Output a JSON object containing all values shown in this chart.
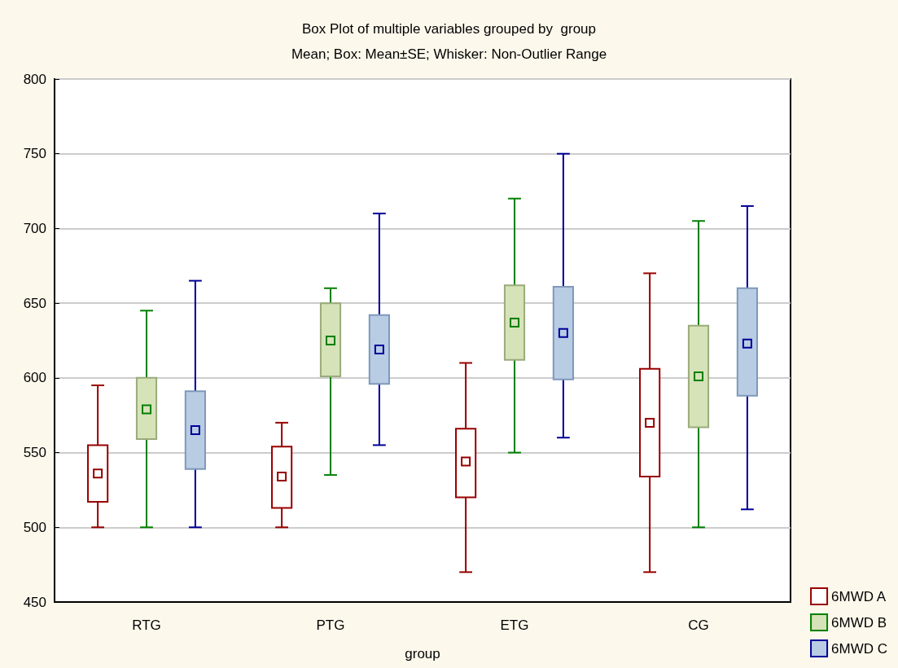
{
  "chart_data": {
    "type": "box",
    "title": "Box Plot of multiple variables grouped by  group",
    "subtitle": "Mean; Box: Mean±SE; Whisker: Non-Outlier Range",
    "xlabel": "group",
    "categories": [
      "RTG",
      "PTG",
      "ETG",
      "CG"
    ],
    "ylim": [
      450,
      800
    ],
    "yticks": [
      450,
      500,
      550,
      600,
      650,
      700,
      750,
      800
    ],
    "grid": "y",
    "legend": "bottom right",
    "marker": "square",
    "series": [
      {
        "name": "6MWD A",
        "color": "#990000",
        "boxes": [
          {
            "low": 500,
            "q1": 517,
            "mean": 536,
            "q3": 555,
            "high": 595
          },
          {
            "low": 500,
            "q1": 513,
            "mean": 534,
            "q3": 554,
            "high": 570
          },
          {
            "low": 470,
            "q1": 520,
            "mean": 544,
            "q3": 566,
            "high": 610
          },
          {
            "low": 470,
            "q1": 534,
            "mean": 570,
            "q3": 606,
            "high": 670
          }
        ]
      },
      {
        "name": "6MWD B",
        "color": "#d6e2b8",
        "boxes": [
          {
            "low": 500,
            "q1": 559,
            "mean": 579,
            "q3": 600,
            "high": 645
          },
          {
            "low": 535,
            "q1": 601,
            "mean": 625,
            "q3": 650,
            "high": 660
          },
          {
            "low": 550,
            "q1": 612,
            "mean": 637,
            "q3": 662,
            "high": 720
          },
          {
            "low": 500,
            "q1": 567,
            "mean": 601,
            "q3": 635,
            "high": 705
          }
        ]
      },
      {
        "name": "6MWD C",
        "color": "#b8cce4",
        "boxes": [
          {
            "low": 500,
            "q1": 539,
            "mean": 565,
            "q3": 591,
            "high": 665
          },
          {
            "low": 555,
            "q1": 596,
            "mean": 619,
            "q3": 642,
            "high": 710
          },
          {
            "low": 560,
            "q1": 599,
            "mean": 630,
            "q3": 661,
            "high": 750
          },
          {
            "low": 512,
            "q1": 588,
            "mean": 623,
            "q3": 660,
            "high": 715
          }
        ]
      }
    ]
  }
}
